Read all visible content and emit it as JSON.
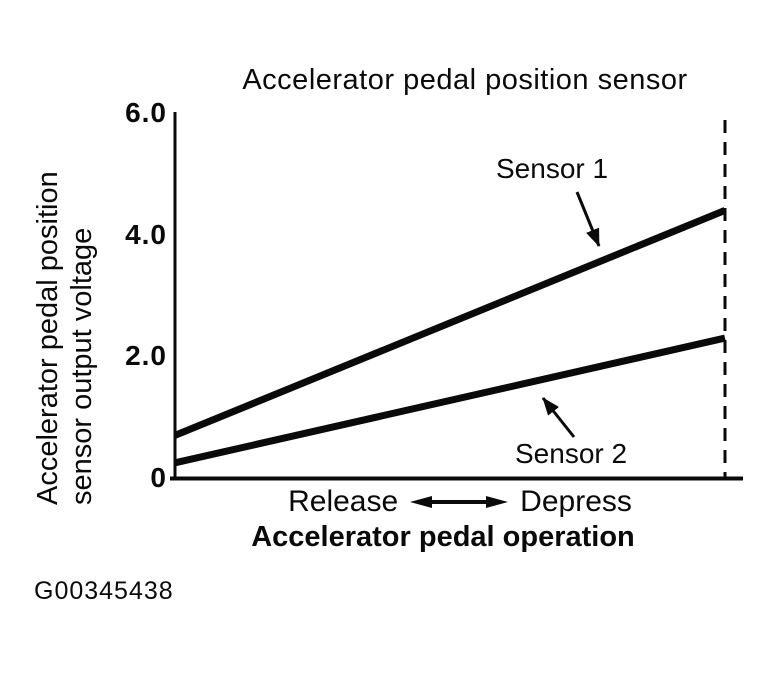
{
  "figure_id": "G00345438",
  "chart_data": {
    "type": "line",
    "title": "Accelerator pedal position sensor",
    "ylabel": "Accelerator pedal position sensor output voltage",
    "ylabel_lines": [
      "Accelerator pedal position",
      "sensor output voltage"
    ],
    "xlabel": "Accelerator pedal operation",
    "x_annotation": {
      "left": "Release",
      "right": "Depress"
    },
    "x_categories": [
      "Release",
      "Depress"
    ],
    "ylim": [
      0,
      6.0
    ],
    "yticks": [
      {
        "label": "6.0",
        "value": 6.0
      },
      {
        "label": "4.0",
        "value": 4.0
      },
      {
        "label": "2.0",
        "value": 2.0
      },
      {
        "label": "0",
        "value": 0
      }
    ],
    "series": [
      {
        "name": "Sensor 1",
        "values": [
          0.7,
          4.4
        ]
      },
      {
        "name": "Sensor 2",
        "values": [
          0.25,
          2.3
        ]
      }
    ],
    "grid": false,
    "legend": "inline-arrow-annotations",
    "right_boundary": "dashed",
    "line_color": "#0a0a0a"
  }
}
